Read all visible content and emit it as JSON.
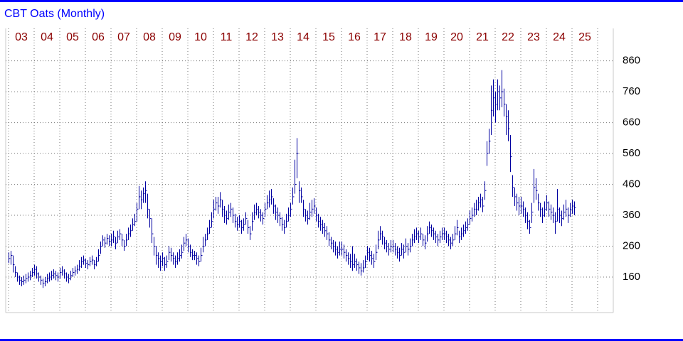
{
  "chart_data": {
    "type": "ohlc",
    "title": "CBT Oats (Monthly)",
    "color": "#0000a0",
    "grid": true,
    "year_labels": [
      "03",
      "04",
      "05",
      "06",
      "07",
      "08",
      "09",
      "10",
      "11",
      "12",
      "13",
      "14",
      "15",
      "16",
      "17",
      "18",
      "19",
      "20",
      "21",
      "22",
      "23",
      "24",
      "25"
    ],
    "ylim": [
      45,
      965
    ],
    "yticks": [
      160,
      260,
      360,
      460,
      560,
      660,
      760,
      860
    ],
    "high": [
      240,
      245,
      230,
      195,
      175,
      165,
      160,
      165,
      170,
      175,
      180,
      190,
      200,
      195,
      175,
      165,
      155,
      160,
      170,
      175,
      180,
      185,
      180,
      175,
      190,
      195,
      185,
      175,
      170,
      180,
      190,
      195,
      200,
      215,
      225,
      230,
      220,
      215,
      225,
      230,
      215,
      225,
      250,
      275,
      295,
      290,
      300,
      295,
      300,
      310,
      290,
      310,
      315,
      300,
      280,
      300,
      320,
      330,
      350,
      365,
      400,
      455,
      440,
      450,
      470,
      430,
      380,
      350,
      290,
      260,
      240,
      230,
      240,
      225,
      230,
      260,
      255,
      240,
      230,
      240,
      250,
      265,
      290,
      300,
      285,
      265,
      250,
      245,
      240,
      230,
      255,
      290,
      300,
      320,
      345,
      370,
      410,
      420,
      420,
      435,
      410,
      390,
      375,
      395,
      400,
      385,
      365,
      355,
      360,
      345,
      350,
      370,
      345,
      325,
      370,
      395,
      400,
      390,
      380,
      370,
      400,
      425,
      440,
      445,
      415,
      395,
      385,
      370,
      355,
      345,
      365,
      385,
      400,
      450,
      540,
      610,
      470,
      450,
      410,
      380,
      375,
      400,
      410,
      415,
      385,
      365,
      355,
      345,
      335,
      325,
      305,
      290,
      280,
      275,
      260,
      275,
      275,
      265,
      250,
      240,
      235,
      260,
      235,
      220,
      210,
      205,
      215,
      230,
      260,
      255,
      245,
      235,
      265,
      310,
      325,
      310,
      290,
      280,
      270,
      280,
      280,
      270,
      260,
      255,
      270,
      265,
      285,
      270,
      285,
      300,
      315,
      320,
      310,
      320,
      300,
      295,
      325,
      340,
      330,
      320,
      310,
      300,
      310,
      320,
      320,
      310,
      300,
      290,
      300,
      325,
      345,
      310,
      320,
      330,
      340,
      350,
      375,
      385,
      400,
      410,
      420,
      430,
      420,
      470,
      600,
      640,
      780,
      800,
      760,
      800,
      780,
      830,
      770,
      720,
      700,
      620,
      490,
      450,
      430,
      420,
      420,
      405,
      385,
      370,
      345,
      400,
      510,
      480,
      430,
      400,
      385,
      405,
      425,
      405,
      395,
      385,
      370,
      445,
      385,
      375,
      395,
      410,
      385,
      400,
      410,
      405
    ],
    "low": [
      205,
      200,
      175,
      160,
      145,
      135,
      130,
      135,
      140,
      145,
      150,
      160,
      165,
      155,
      145,
      135,
      125,
      130,
      140,
      145,
      150,
      155,
      150,
      145,
      155,
      165,
      155,
      145,
      140,
      150,
      160,
      165,
      170,
      180,
      190,
      200,
      190,
      185,
      195,
      200,
      185,
      195,
      210,
      235,
      260,
      255,
      265,
      260,
      260,
      270,
      250,
      270,
      280,
      260,
      245,
      260,
      280,
      290,
      310,
      325,
      340,
      380,
      380,
      400,
      400,
      350,
      320,
      270,
      230,
      200,
      190,
      180,
      195,
      180,
      190,
      215,
      210,
      200,
      190,
      200,
      210,
      220,
      245,
      260,
      240,
      225,
      215,
      215,
      200,
      195,
      210,
      240,
      260,
      280,
      300,
      320,
      350,
      375,
      365,
      385,
      355,
      335,
      330,
      345,
      355,
      335,
      320,
      310,
      320,
      300,
      310,
      330,
      300,
      280,
      310,
      345,
      360,
      350,
      340,
      330,
      355,
      380,
      385,
      395,
      365,
      345,
      335,
      325,
      310,
      300,
      320,
      340,
      355,
      395,
      430,
      480,
      400,
      400,
      355,
      340,
      330,
      345,
      355,
      365,
      340,
      320,
      310,
      300,
      290,
      280,
      260,
      250,
      240,
      230,
      220,
      230,
      230,
      220,
      210,
      200,
      190,
      180,
      190,
      180,
      170,
      165,
      175,
      190,
      215,
      210,
      200,
      190,
      215,
      250,
      280,
      265,
      250,
      240,
      230,
      240,
      240,
      230,
      220,
      210,
      230,
      220,
      240,
      230,
      240,
      260,
      270,
      280,
      270,
      280,
      260,
      250,
      275,
      300,
      290,
      280,
      270,
      260,
      270,
      280,
      280,
      270,
      260,
      250,
      260,
      280,
      295,
      270,
      280,
      290,
      300,
      310,
      330,
      340,
      355,
      360,
      375,
      385,
      370,
      410,
      520,
      560,
      620,
      680,
      660,
      700,
      700,
      710,
      680,
      620,
      600,
      500,
      420,
      390,
      375,
      360,
      365,
      355,
      335,
      315,
      300,
      335,
      400,
      410,
      375,
      355,
      335,
      355,
      375,
      355,
      345,
      335,
      300,
      340,
      335,
      325,
      345,
      355,
      335,
      355,
      365,
      360
    ],
    "close": [
      220,
      230,
      200,
      175,
      160,
      150,
      145,
      150,
      155,
      160,
      165,
      175,
      185,
      170,
      160,
      150,
      140,
      145,
      155,
      160,
      165,
      170,
      165,
      160,
      175,
      180,
      170,
      160,
      155,
      165,
      175,
      180,
      185,
      195,
      210,
      215,
      205,
      200,
      210,
      215,
      200,
      210,
      230,
      260,
      280,
      270,
      285,
      275,
      280,
      290,
      270,
      290,
      300,
      280,
      260,
      280,
      300,
      310,
      330,
      340,
      380,
      420,
      410,
      430,
      440,
      380,
      350,
      300,
      260,
      230,
      220,
      210,
      220,
      200,
      210,
      240,
      230,
      220,
      210,
      220,
      230,
      240,
      270,
      280,
      260,
      240,
      230,
      230,
      220,
      210,
      230,
      260,
      280,
      300,
      320,
      340,
      380,
      400,
      390,
      410,
      380,
      360,
      350,
      370,
      380,
      360,
      340,
      330,
      340,
      320,
      330,
      350,
      320,
      300,
      340,
      370,
      380,
      370,
      360,
      350,
      380,
      400,
      410,
      420,
      390,
      370,
      360,
      350,
      330,
      320,
      340,
      360,
      380,
      420,
      460,
      560,
      440,
      420,
      380,
      360,
      350,
      370,
      380,
      390,
      360,
      340,
      330,
      320,
      310,
      300,
      280,
      270,
      260,
      250,
      240,
      250,
      250,
      240,
      230,
      220,
      210,
      200,
      210,
      200,
      190,
      180,
      190,
      210,
      240,
      230,
      220,
      210,
      240,
      280,
      300,
      290,
      270,
      260,
      250,
      260,
      260,
      250,
      240,
      230,
      250,
      240,
      260,
      250,
      260,
      280,
      290,
      300,
      290,
      300,
      280,
      270,
      300,
      320,
      310,
      300,
      290,
      280,
      290,
      300,
      300,
      290,
      280,
      270,
      280,
      300,
      320,
      290,
      300,
      310,
      320,
      330,
      350,
      360,
      380,
      380,
      400,
      410,
      390,
      440,
      560,
      600,
      700,
      740,
      720,
      760,
      740,
      760,
      720,
      680,
      640,
      550,
      450,
      420,
      400,
      390,
      390,
      380,
      360,
      340,
      320,
      370,
      450,
      440,
      400,
      380,
      360,
      380,
      400,
      380,
      370,
      360,
      340,
      380,
      360,
      350,
      370,
      380,
      360,
      380,
      390,
      385
    ]
  }
}
